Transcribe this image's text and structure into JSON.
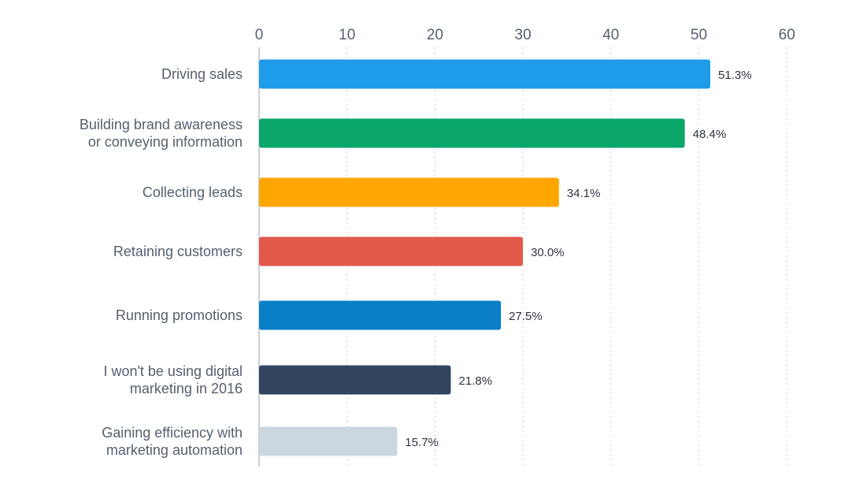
{
  "chart_data": {
    "type": "bar",
    "orientation": "horizontal",
    "title": "",
    "xlabel": "",
    "ylabel": "",
    "xlim": [
      0,
      60
    ],
    "x_ticks": [
      0,
      10,
      20,
      30,
      40,
      50,
      60
    ],
    "x_axis_position": "top",
    "grid": "vertical dotted",
    "legend": "none",
    "categories": [
      [
        "Driving sales"
      ],
      [
        "Building brand awareness",
        "or conveying information"
      ],
      [
        "Collecting leads"
      ],
      [
        "Retaining customers"
      ],
      [
        "Running promotions"
      ],
      [
        "I won't be using digital",
        "marketing in 2016"
      ],
      [
        "Gaining efficiency with",
        "marketing automation"
      ]
    ],
    "values": [
      51.3,
      48.4,
      34.1,
      30.0,
      27.5,
      21.8,
      15.7
    ],
    "value_labels": [
      "51.3%",
      "48.4%",
      "34.1%",
      "30.0%",
      "27.5%",
      "21.8%",
      "15.7%"
    ],
    "colors": [
      "#1e9be9",
      "#0aa66a",
      "#ffa600",
      "#e25a4a",
      "#0a7fc8",
      "#33465f",
      "#cbd6df"
    ]
  }
}
